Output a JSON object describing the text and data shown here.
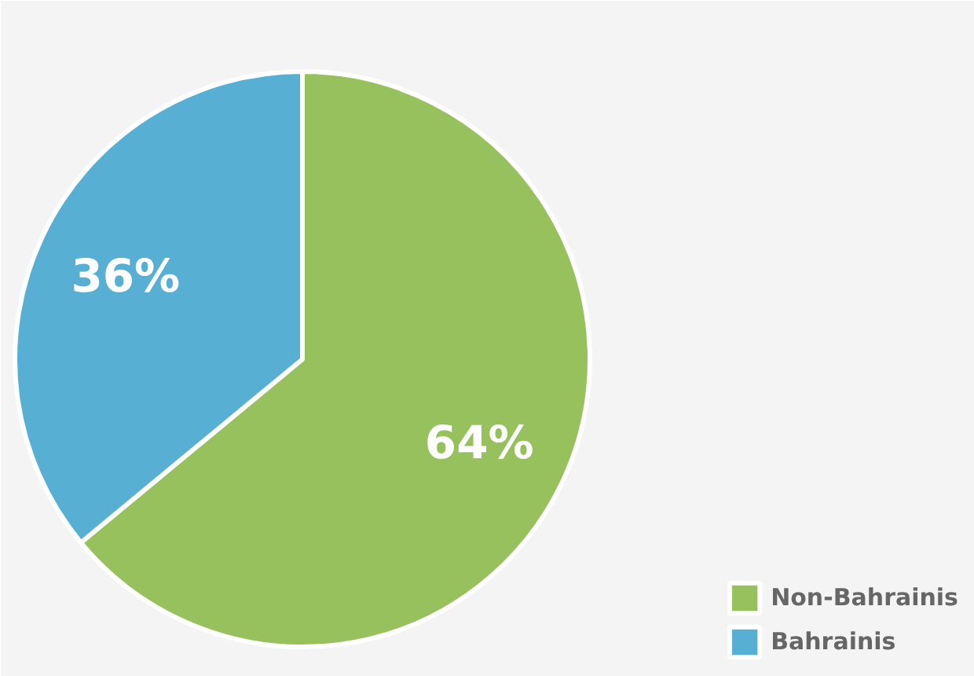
{
  "chart_data": {
    "type": "pie",
    "categories": [
      "Non-Bahrainis",
      "Bahrainis"
    ],
    "values": [
      64,
      36
    ],
    "colors": [
      "#97c15c",
      "#57b0d4"
    ],
    "value_labels": [
      "64%",
      "36%"
    ],
    "legend": "bottom right"
  }
}
